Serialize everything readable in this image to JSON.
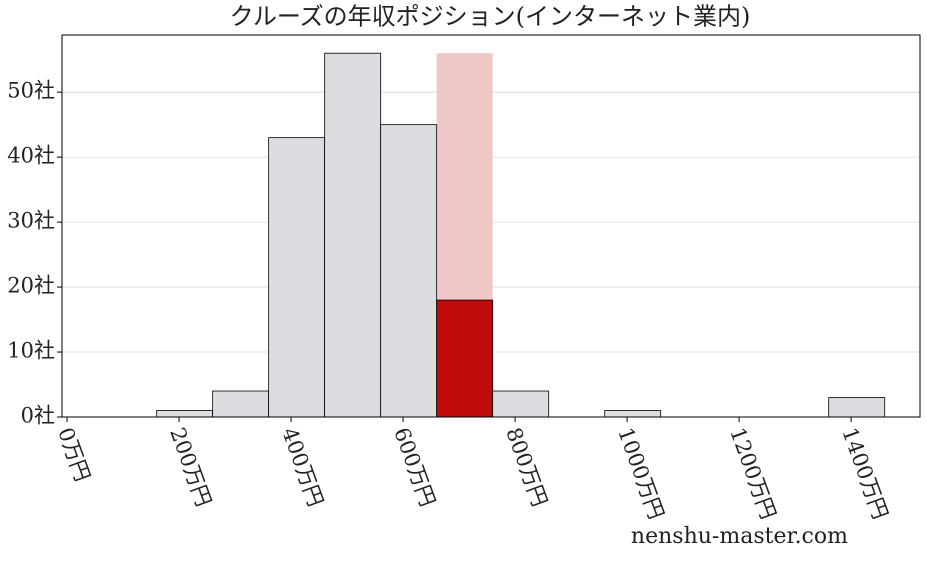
{
  "chart_data": {
    "type": "histogram",
    "title": "クルーズの年収ポジション(インターネット業内)",
    "bins": [
      160,
      260,
      360,
      460,
      560,
      660,
      760,
      860,
      960,
      1060,
      1160,
      1260,
      1360,
      1460
    ],
    "counts": [
      1,
      4,
      43,
      56,
      45,
      18,
      4,
      0,
      1,
      0,
      0,
      0,
      3
    ],
    "color": "#dcdde0",
    "highlight_bin": 5,
    "highlight_color": "#c00b0b",
    "highlight_band_color": "#f0c8c8",
    "xlim": [
      -9,
      1523
    ],
    "ylim": [
      0,
      58.8
    ],
    "xticks": [
      {
        "value": 0,
        "label": "0万円"
      },
      {
        "value": 200,
        "label": "200万円"
      },
      {
        "value": 400,
        "label": "400万円"
      },
      {
        "value": 600,
        "label": "600万円"
      },
      {
        "value": 800,
        "label": "800万円"
      },
      {
        "value": 1000,
        "label": "1000万円"
      },
      {
        "value": 1200,
        "label": "1200万円"
      },
      {
        "value": 1400,
        "label": "1400万円"
      }
    ],
    "yticks": [
      {
        "value": 0,
        "label": "0社"
      },
      {
        "value": 10,
        "label": "10社"
      },
      {
        "value": 20,
        "label": "20社"
      },
      {
        "value": 30,
        "label": "30社"
      },
      {
        "value": 40,
        "label": "40社"
      },
      {
        "value": 50,
        "label": "50社"
      }
    ],
    "grid": true,
    "watermark": "nenshu-master.com"
  }
}
